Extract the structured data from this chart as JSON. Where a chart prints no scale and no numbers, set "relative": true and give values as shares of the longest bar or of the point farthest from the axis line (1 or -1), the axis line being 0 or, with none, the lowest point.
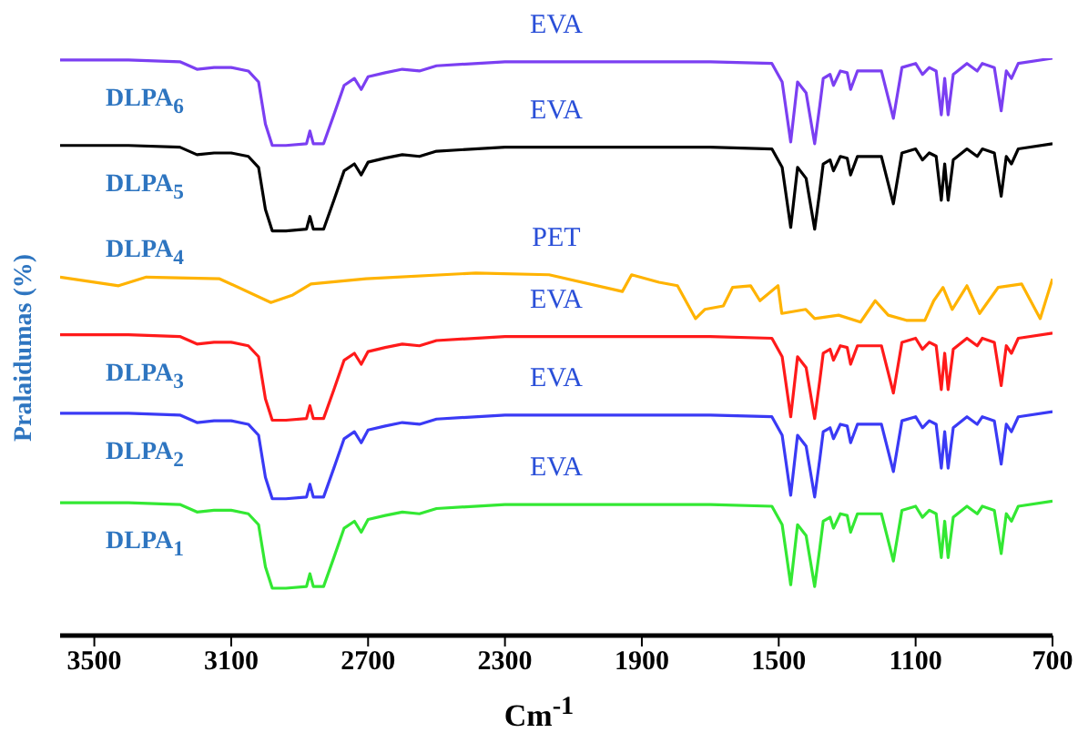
{
  "chart_data": {
    "type": "line",
    "xlabel": "Cm$^{-1}$",
    "ylabel": "Pralaidumas (%)",
    "relative": true,
    "xlim": [
      3600,
      700
    ],
    "xticks": [
      3500,
      3100,
      2700,
      2300,
      1900,
      1500,
      1100,
      700
    ],
    "tick_labels": "x",
    "grid": false,
    "legend": false,
    "marker": "none",
    "line_style": "solid",
    "x": [
      3600,
      3400,
      3250,
      3200,
      3150,
      3100,
      3050,
      3020,
      3000,
      2980,
      2940,
      2880,
      2870,
      2860,
      2830,
      2800,
      2770,
      2740,
      2720,
      2700,
      2650,
      2600,
      2550,
      2500,
      2300,
      2000,
      1700,
      1520,
      1490,
      1465,
      1445,
      1420,
      1395,
      1380,
      1370,
      1350,
      1340,
      1320,
      1300,
      1290,
      1270,
      1200,
      1165,
      1140,
      1100,
      1080,
      1060,
      1040,
      1025,
      1015,
      1005,
      990,
      950,
      920,
      905,
      870,
      850,
      835,
      820,
      800,
      700
    ],
    "annotations": [
      "EVA",
      "EVA",
      "PET",
      "EVA",
      "EVA",
      "EVA"
    ],
    "series": [
      {
        "name": "DLPA$_{6}$",
        "color": "#7b3ff2",
        "values": [
          0.997,
          0.997,
          0.994,
          0.981,
          0.984,
          0.984,
          0.978,
          0.959,
          0.886,
          0.849,
          0.849,
          0.852,
          0.874,
          0.852,
          0.852,
          0.902,
          0.953,
          0.965,
          0.946,
          0.968,
          0.975,
          0.981,
          0.978,
          0.987,
          0.994,
          0.994,
          0.994,
          0.991,
          0.959,
          0.855,
          0.959,
          0.94,
          0.852,
          0.918,
          0.965,
          0.972,
          0.953,
          0.978,
          0.975,
          0.946,
          0.978,
          0.978,
          0.896,
          0.984,
          0.991,
          0.972,
          0.984,
          0.978,
          0.902,
          0.965,
          0.902,
          0.972,
          0.991,
          0.978,
          0.991,
          0.984,
          0.909,
          0.978,
          0.965,
          0.991,
          1
        ]
      },
      {
        "name": "DLPA$_{5}$",
        "color": "#000000",
        "values": [
          0.849,
          0.849,
          0.846,
          0.833,
          0.836,
          0.836,
          0.83,
          0.811,
          0.738,
          0.701,
          0.701,
          0.704,
          0.726,
          0.704,
          0.704,
          0.754,
          0.805,
          0.817,
          0.798,
          0.82,
          0.827,
          0.833,
          0.83,
          0.839,
          0.846,
          0.846,
          0.846,
          0.843,
          0.811,
          0.707,
          0.811,
          0.792,
          0.704,
          0.77,
          0.817,
          0.824,
          0.805,
          0.83,
          0.827,
          0.798,
          0.83,
          0.83,
          0.748,
          0.836,
          0.843,
          0.824,
          0.836,
          0.83,
          0.754,
          0.817,
          0.754,
          0.824,
          0.843,
          0.83,
          0.843,
          0.836,
          0.761,
          0.83,
          0.817,
          0.843,
          0.852
        ]
      },
      {
        "name": "DLPA$_{4}$",
        "color": "#ffb300",
        "x": [
          3600,
          3429,
          3348,
          3134,
          2984,
          2920,
          2867,
          2706,
          2385,
          2171,
          1957,
          1930,
          1850,
          1796,
          1743,
          1716,
          1662,
          1635,
          1582,
          1555,
          1502,
          1491,
          1421,
          1395,
          1325,
          1261,
          1218,
          1180,
          1127,
          1073,
          1047,
          1020,
          993,
          950,
          913,
          859,
          790,
          736,
          700
        ],
        "values": [
          0.621,
          0.606,
          0.621,
          0.618,
          0.577,
          0.59,
          0.609,
          0.618,
          0.628,
          0.625,
          0.596,
          0.625,
          0.612,
          0.606,
          0.549,
          0.565,
          0.571,
          0.603,
          0.606,
          0.58,
          0.606,
          0.558,
          0.565,
          0.549,
          0.555,
          0.543,
          0.58,
          0.555,
          0.546,
          0.546,
          0.58,
          0.603,
          0.565,
          0.606,
          0.558,
          0.603,
          0.609,
          0.549,
          0.618
        ]
      },
      {
        "name": "DLPA$_{3}$",
        "color": "#ff1a1a",
        "values": [
          0.521,
          0.521,
          0.518,
          0.505,
          0.508,
          0.508,
          0.502,
          0.483,
          0.41,
          0.373,
          0.373,
          0.376,
          0.398,
          0.376,
          0.376,
          0.426,
          0.477,
          0.489,
          0.47,
          0.492,
          0.499,
          0.505,
          0.502,
          0.511,
          0.518,
          0.518,
          0.518,
          0.515,
          0.483,
          0.379,
          0.483,
          0.464,
          0.376,
          0.442,
          0.489,
          0.496,
          0.477,
          0.502,
          0.499,
          0.47,
          0.502,
          0.502,
          0.42,
          0.508,
          0.515,
          0.496,
          0.508,
          0.502,
          0.426,
          0.489,
          0.426,
          0.496,
          0.515,
          0.502,
          0.515,
          0.508,
          0.433,
          0.502,
          0.489,
          0.515,
          0.524
        ]
      },
      {
        "name": "DLPA$_{2}$",
        "color": "#3a3af5",
        "values": [
          0.385,
          0.385,
          0.382,
          0.369,
          0.372,
          0.372,
          0.366,
          0.347,
          0.274,
          0.237,
          0.237,
          0.24,
          0.262,
          0.24,
          0.24,
          0.29,
          0.341,
          0.353,
          0.334,
          0.356,
          0.363,
          0.369,
          0.366,
          0.375,
          0.382,
          0.382,
          0.382,
          0.379,
          0.347,
          0.243,
          0.347,
          0.328,
          0.24,
          0.306,
          0.353,
          0.36,
          0.341,
          0.366,
          0.363,
          0.334,
          0.366,
          0.366,
          0.284,
          0.372,
          0.379,
          0.36,
          0.372,
          0.366,
          0.29,
          0.353,
          0.29,
          0.36,
          0.379,
          0.366,
          0.379,
          0.372,
          0.297,
          0.366,
          0.353,
          0.379,
          0.388
        ]
      },
      {
        "name": "DLPA$_{1}$",
        "color": "#33e833",
        "values": [
          0.23,
          0.23,
          0.227,
          0.214,
          0.217,
          0.217,
          0.211,
          0.192,
          0.119,
          0.082,
          0.082,
          0.085,
          0.107,
          0.085,
          0.085,
          0.135,
          0.186,
          0.198,
          0.179,
          0.201,
          0.208,
          0.214,
          0.211,
          0.22,
          0.227,
          0.227,
          0.227,
          0.224,
          0.192,
          0.088,
          0.192,
          0.173,
          0.085,
          0.151,
          0.198,
          0.205,
          0.186,
          0.211,
          0.208,
          0.179,
          0.211,
          0.211,
          0.129,
          0.217,
          0.224,
          0.205,
          0.217,
          0.211,
          0.135,
          0.198,
          0.135,
          0.205,
          0.224,
          0.211,
          0.224,
          0.217,
          0.142,
          0.211,
          0.198,
          0.224,
          0.233
        ]
      }
    ]
  }
}
